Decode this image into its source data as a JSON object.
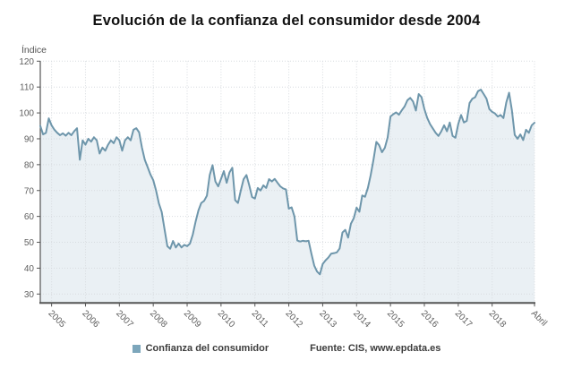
{
  "title": "Evolución de la confianza del consumidor desde 2004",
  "y_axis_title": "Índice",
  "legend": {
    "series_label": "Confianza del consumidor",
    "source_label": "Fuente: CIS, www.epdata.es"
  },
  "colors": {
    "line": "#6e96ab",
    "area_fill": "rgba(124,163,188,0.16)",
    "legend_swatch": "#7ca6bb",
    "grid": "#d7dbdf",
    "axis": "#555555",
    "tick_text": "#606060",
    "title_text": "#111111"
  },
  "chart_data": {
    "type": "line",
    "title": "Evolución de la confianza del consumidor desde 2004",
    "ylabel": "Índice",
    "xlabel": "",
    "grid": true,
    "legend_position": "bottom",
    "ylim": [
      30,
      120
    ],
    "y_ticks": [
      30,
      40,
      50,
      60,
      70,
      80,
      90,
      100,
      110,
      120
    ],
    "x_start": "2004-09",
    "x_end": "2019-04",
    "x_ticks": [
      {
        "index": 4,
        "label": "2005"
      },
      {
        "index": 16,
        "label": "2006"
      },
      {
        "index": 28,
        "label": "2007"
      },
      {
        "index": 40,
        "label": "2008"
      },
      {
        "index": 52,
        "label": "2009"
      },
      {
        "index": 64,
        "label": "2010"
      },
      {
        "index": 76,
        "label": "2011"
      },
      {
        "index": 88,
        "label": "2012"
      },
      {
        "index": 100,
        "label": "2013"
      },
      {
        "index": 112,
        "label": "2014"
      },
      {
        "index": 124,
        "label": "2015"
      },
      {
        "index": 136,
        "label": "2016"
      },
      {
        "index": 148,
        "label": "2017"
      },
      {
        "index": 160,
        "label": "2018"
      },
      {
        "index": 175,
        "label": "Abril"
      }
    ],
    "series": [
      {
        "name": "Confianza del consumidor",
        "frequency": "monthly",
        "values": [
          95.0,
          91.7,
          92.3,
          97.9,
          95.2,
          93.5,
          92.3,
          91.4,
          92.1,
          91.2,
          92.3,
          91.4,
          92.9,
          94.1,
          81.9,
          89.4,
          87.7,
          90.0,
          88.9,
          90.6,
          89.4,
          84.3,
          86.6,
          85.4,
          87.7,
          89.4,
          88.3,
          90.6,
          89.4,
          85.4,
          89.4,
          90.6,
          89.4,
          93.5,
          94.1,
          92.5,
          86.6,
          81.9,
          79.1,
          76.2,
          74.0,
          70.0,
          65.0,
          61.7,
          55.0,
          48.5,
          47.5,
          50.5,
          48.0,
          49.5,
          48.0,
          49.0,
          48.5,
          49.5,
          53.0,
          58.0,
          62.3,
          65.2,
          66.0,
          68.0,
          76.0,
          79.8,
          73.5,
          71.6,
          74.5,
          77.5,
          73.0,
          77.0,
          78.8,
          66.3,
          65.2,
          70.0,
          74.4,
          76.0,
          72.0,
          67.5,
          66.9,
          71.0,
          70.0,
          72.0,
          71.0,
          74.4,
          73.5,
          74.5,
          73.0,
          71.6,
          70.8,
          70.4,
          63.0,
          63.5,
          60.0,
          50.7,
          50.3,
          50.6,
          50.4,
          50.6,
          45.6,
          41.0,
          38.7,
          37.6,
          41.6,
          43.0,
          44.1,
          45.6,
          45.8,
          46.1,
          47.6,
          53.8,
          54.8,
          51.8,
          57.2,
          59.3,
          63.4,
          61.8,
          68.1,
          67.6,
          71.0,
          76.0,
          82.0,
          88.8,
          87.5,
          84.8,
          86.5,
          90.5,
          98.6,
          99.5,
          100.2,
          99.3,
          101.0,
          102.5,
          104.9,
          105.8,
          104.4,
          100.9,
          107.3,
          106.1,
          101.5,
          98.1,
          95.7,
          94.0,
          92.3,
          91.1,
          92.9,
          95.2,
          92.9,
          96.3,
          91.1,
          90.4,
          95.7,
          99.2,
          96.3,
          96.9,
          103.8,
          105.5,
          106.1,
          108.4,
          109.0,
          107.3,
          105.5,
          101.5,
          100.4,
          99.8,
          98.6,
          99.2,
          98.0,
          104.0,
          107.8,
          101.0,
          91.5,
          90.0,
          91.7,
          89.5,
          93.5,
          92.3,
          95.2,
          96.2
        ]
      }
    ]
  }
}
